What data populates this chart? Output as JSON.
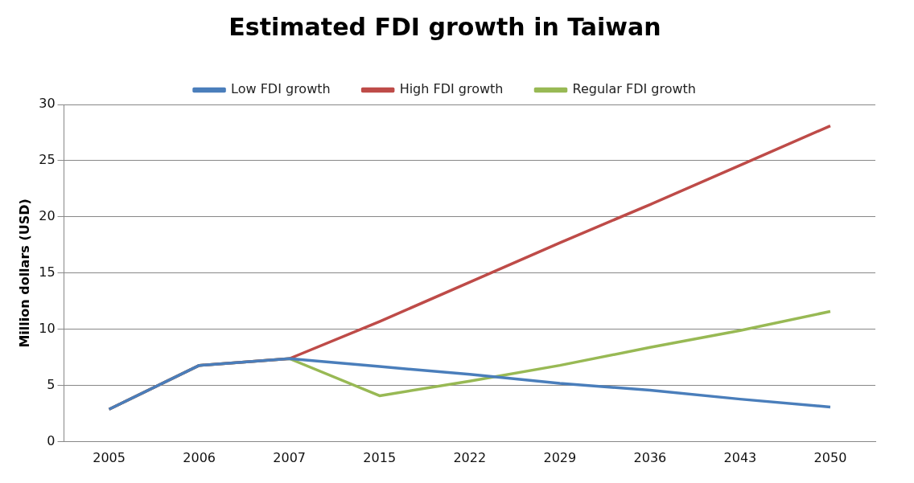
{
  "chart_data": {
    "type": "line",
    "title": "Estimated FDI growth in Taiwan",
    "ylabel": "Million dollars (USD)",
    "categories": [
      "2005",
      "2006",
      "2007",
      "2015",
      "2022",
      "2029",
      "2036",
      "2043",
      "2050"
    ],
    "series": [
      {
        "name": "Low FDI growth",
        "color": "#4a7ebb",
        "values": [
          2.9,
          6.8,
          7.4,
          6.7,
          6.0,
          5.2,
          4.6,
          3.8,
          3.1
        ]
      },
      {
        "name": "High FDI growth",
        "color": "#be4b48",
        "values": [
          2.9,
          6.8,
          7.4,
          10.7,
          14.2,
          17.7,
          21.1,
          24.6,
          28.1
        ]
      },
      {
        "name": "Regular FDI growth",
        "color": "#98b954",
        "values": [
          2.9,
          6.8,
          7.4,
          4.1,
          5.4,
          6.8,
          8.4,
          9.9,
          11.6
        ]
      }
    ],
    "ylim": [
      0,
      30
    ],
    "yticks": [
      0,
      5,
      10,
      15,
      20,
      25,
      30
    ],
    "grid": "y",
    "legend": "top",
    "marker": "none",
    "line_style": "solid"
  }
}
